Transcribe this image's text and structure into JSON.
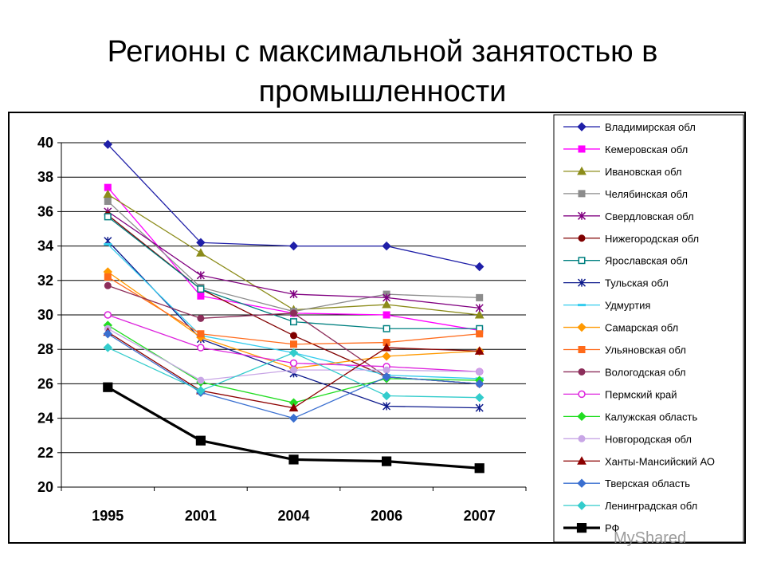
{
  "slide": {
    "title": "Регионы с максимальной занятостью в промышленности",
    "watermark": "MyShared"
  },
  "chart_data": {
    "type": "line",
    "categories": [
      "1995",
      "2001",
      "2004",
      "2006",
      "2007"
    ],
    "ylim": [
      20,
      40
    ],
    "yticks": [
      20,
      22,
      24,
      26,
      28,
      30,
      32,
      34,
      36,
      38,
      40
    ],
    "grid": true,
    "legend_position": "right",
    "series": [
      {
        "name": "Владимирская обл",
        "values": [
          39.9,
          34.2,
          34.0,
          34.0,
          32.8
        ],
        "color": "#1f1fa8",
        "marker": "diamond-filled",
        "width": 1.3
      },
      {
        "name": "Кемеровская обл",
        "values": [
          37.4,
          31.1,
          30.1,
          30.0,
          29.1
        ],
        "color": "#ff00ff",
        "marker": "square-filled",
        "width": 1.3
      },
      {
        "name": "Ивановская обл",
        "values": [
          37.0,
          33.6,
          30.3,
          30.6,
          30.0
        ],
        "color": "#8c8c1a",
        "marker": "triangle-filled",
        "width": 1.3
      },
      {
        "name": "Челябинская обл",
        "values": [
          36.6,
          31.6,
          30.2,
          31.2,
          31.0
        ],
        "color": "#8c8c8c",
        "marker": "square-filled",
        "width": 1.3
      },
      {
        "name": "Свердловская обл",
        "values": [
          36.0,
          32.3,
          31.2,
          31.0,
          30.4
        ],
        "color": "#800080",
        "marker": "star",
        "width": 1.3
      },
      {
        "name": "Нижегородская обл",
        "values": [
          35.8,
          31.5,
          28.8,
          26.4,
          26.0
        ],
        "color": "#800000",
        "marker": "circle-filled",
        "width": 1.3
      },
      {
        "name": "Ярославская обл",
        "values": [
          35.7,
          31.5,
          29.6,
          29.2,
          29.2
        ],
        "color": "#008080",
        "marker": "square-open",
        "width": 1.3
      },
      {
        "name": "Тульская обл",
        "values": [
          34.3,
          28.6,
          26.6,
          24.7,
          24.6
        ],
        "color": "#0d1a8c",
        "marker": "star",
        "width": 1.3
      },
      {
        "name": "Удмуртия",
        "values": [
          34.1,
          28.8,
          27.8,
          26.5,
          26.3
        ],
        "color": "#33ccee",
        "marker": "dash",
        "width": 1.3
      },
      {
        "name": "Самарская обл",
        "values": [
          32.5,
          28.7,
          26.9,
          27.6,
          27.9
        ],
        "color": "#ff9900",
        "marker": "diamond-filled",
        "width": 1.3
      },
      {
        "name": "Ульяновская обл",
        "values": [
          32.2,
          28.9,
          28.3,
          28.4,
          28.9
        ],
        "color": "#ff6a1a",
        "marker": "square-filled",
        "width": 1.3
      },
      {
        "name": "Вологодская обл",
        "values": [
          31.7,
          29.8,
          30.1,
          26.4,
          26.0
        ],
        "color": "#8c2d5a",
        "marker": "circle-filled",
        "width": 1.3
      },
      {
        "name": "Пермский край",
        "values": [
          30.0,
          28.1,
          27.2,
          27.0,
          26.7
        ],
        "color": "#dd22dd",
        "marker": "circle-open",
        "width": 1.3
      },
      {
        "name": "Калужская область",
        "values": [
          29.4,
          26.1,
          24.9,
          26.3,
          26.2
        ],
        "color": "#22dd22",
        "marker": "diamond-filled",
        "width": 1.3
      },
      {
        "name": "Новгородская обл",
        "values": [
          29.2,
          26.2,
          26.8,
          26.8,
          26.7
        ],
        "color": "#c8a6e6",
        "marker": "circle-filled",
        "width": 1.3
      },
      {
        "name": "Ханты-Мансийский АО",
        "values": [
          29.0,
          25.6,
          24.6,
          28.1,
          27.9
        ],
        "color": "#8c0000",
        "marker": "triangle-filled",
        "width": 1.3
      },
      {
        "name": "Тверская область",
        "values": [
          28.9,
          25.5,
          24.0,
          26.4,
          26.0
        ],
        "color": "#3a6fd0",
        "marker": "diamond-filled",
        "width": 1.3
      },
      {
        "name": "Ленинградская обл",
        "values": [
          28.1,
          25.6,
          27.8,
          25.3,
          25.2
        ],
        "color": "#33cccc",
        "marker": "diamond-filled",
        "width": 1.3
      },
      {
        "name": "РФ",
        "values": [
          25.8,
          22.7,
          21.6,
          21.5,
          21.1
        ],
        "color": "#000000",
        "marker": "square-filled",
        "width": 3.2
      }
    ]
  }
}
